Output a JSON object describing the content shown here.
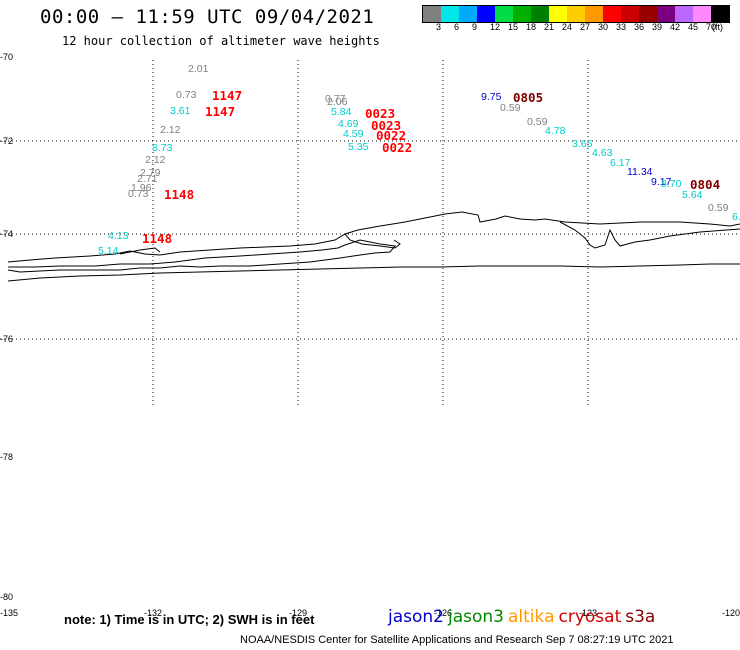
{
  "header": {
    "title": "00:00 – 11:59 UTC 09/04/2021",
    "subtitle": "12 hour collection of altimeter wave heights"
  },
  "legend": {
    "unit_label": "(ft)",
    "ticks": [
      "3",
      "6",
      "9",
      "12",
      "15",
      "18",
      "21",
      "24",
      "27",
      "30",
      "33",
      "36",
      "39",
      "42",
      "45",
      "70"
    ],
    "colors": [
      "#808080",
      "#00e6e6",
      "#00aaff",
      "#0000ff",
      "#00dd44",
      "#00b000",
      "#008000",
      "#ffff00",
      "#ffcc00",
      "#ff9900",
      "#ff0000",
      "#cc0000",
      "#990000",
      "#7a0080",
      "#bb66ff",
      "#ff88ff",
      "#000000"
    ]
  },
  "map": {
    "lat_labels": [
      "-70",
      "-72",
      "-74",
      "-76",
      "-78",
      "-80"
    ],
    "lon_labels": [
      "-135",
      "-132",
      "-129",
      "-126",
      "-123",
      "-120"
    ],
    "observations": [
      {
        "text": "2.01",
        "color": "#808080"
      },
      {
        "text": "0.73",
        "color": "#808080"
      },
      {
        "text": "1147",
        "color": "#ff0000",
        "time": true
      },
      {
        "text": "3.61",
        "color": "#00cccc"
      },
      {
        "text": "1147",
        "color": "#ff0000",
        "time": true
      },
      {
        "text": "2.12",
        "color": "#808080"
      },
      {
        "text": "8.73",
        "color": "#00cccc"
      },
      {
        "text": "2.12",
        "color": "#808080"
      },
      {
        "text": "2.79",
        "color": "#808080"
      },
      {
        "text": "2.71",
        "color": "#808080"
      },
      {
        "text": "1.96",
        "color": "#808080"
      },
      {
        "text": "0.73",
        "color": "#808080"
      },
      {
        "text": "1148",
        "color": "#ff0000",
        "time": true
      },
      {
        "text": "4.13",
        "color": "#00cccc"
      },
      {
        "text": "1148",
        "color": "#ff0000",
        "time": true
      },
      {
        "text": "5.14",
        "color": "#00cccc"
      },
      {
        "text": "0.77",
        "color": "#808080"
      },
      {
        "text": "2.06",
        "color": "#808080"
      },
      {
        "text": "0023",
        "color": "#ff0000",
        "time": true
      },
      {
        "text": "5.84",
        "color": "#00cccc"
      },
      {
        "text": "0023",
        "color": "#ff0000",
        "time": true
      },
      {
        "text": "4.69",
        "color": "#00cccc"
      },
      {
        "text": "0022",
        "color": "#ff0000",
        "time": true
      },
      {
        "text": "4.59",
        "color": "#00cccc"
      },
      {
        "text": "5.35",
        "color": "#00cccc"
      },
      {
        "text": "0022",
        "color": "#ff0000",
        "time": true
      },
      {
        "text": "9.75",
        "color": "#0000cc"
      },
      {
        "text": "0805",
        "color": "#800000",
        "time": true
      },
      {
        "text": "0.59",
        "color": "#808080"
      },
      {
        "text": "0.59",
        "color": "#808080"
      },
      {
        "text": "4.78",
        "color": "#00cccc"
      },
      {
        "text": "3.65",
        "color": "#00cccc"
      },
      {
        "text": "4.63",
        "color": "#00cccc"
      },
      {
        "text": "6.17",
        "color": "#00cccc"
      },
      {
        "text": "11.34",
        "color": "#0000cc"
      },
      {
        "text": "9.17",
        "color": "#0000cc"
      },
      {
        "text": "8.70",
        "color": "#00cccc"
      },
      {
        "text": "0804",
        "color": "#800000",
        "time": true
      },
      {
        "text": "5.64",
        "color": "#00cccc"
      },
      {
        "text": "0.59",
        "color": "#808080"
      },
      {
        "text": "6.",
        "color": "#00cccc"
      }
    ]
  },
  "footer": {
    "note": "note: 1) Time is in UTC; 2) SWH is in feet",
    "satellites": [
      {
        "name": "jason2",
        "color": "#0000cc"
      },
      {
        "name": "jason3",
        "color": "#008800"
      },
      {
        "name": "altika",
        "color": "#ff9900"
      },
      {
        "name": "cryosat",
        "color": "#cc0000"
      },
      {
        "name": "s3a",
        "color": "#800000"
      }
    ],
    "credit": "NOAA/NESDIS Center for Satellite Applications and Research    Sep  7 08:27:19 UTC 2021"
  }
}
